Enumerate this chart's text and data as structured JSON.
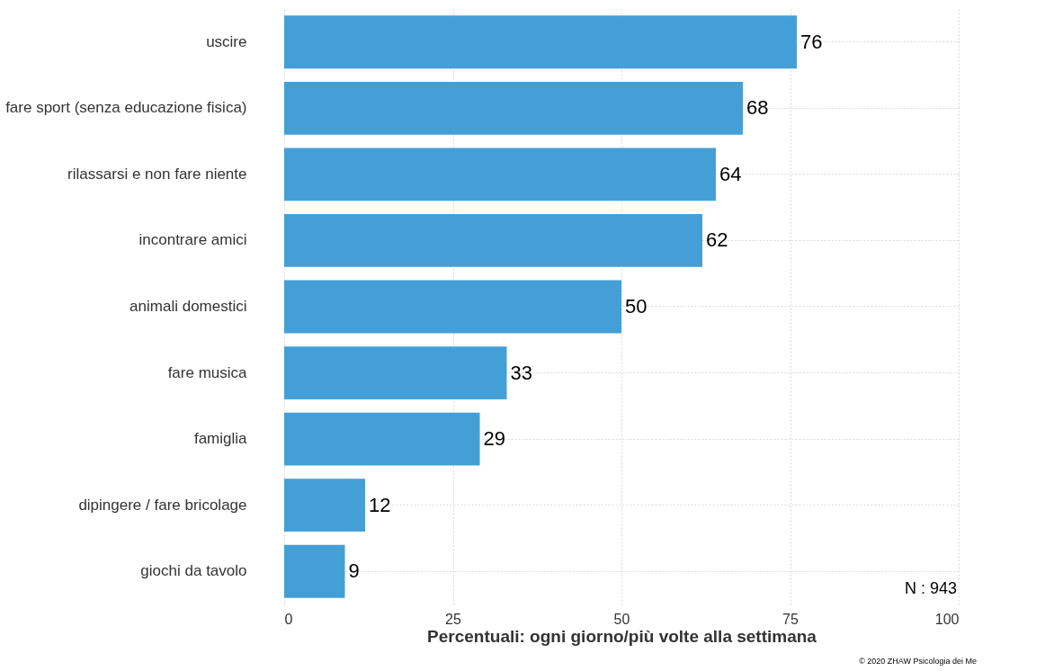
{
  "chart_data": {
    "type": "bar",
    "orientation": "horizontal",
    "categories": [
      "uscire",
      "fare sport (senza educazione fisica)",
      "rilassarsi e non fare niente",
      "incontrare amici",
      "animali domestici",
      "fare musica",
      "famiglia",
      "dipingere / fare bricolage",
      "giochi da tavolo"
    ],
    "values": [
      76,
      68,
      64,
      62,
      50,
      33,
      29,
      12,
      9
    ],
    "color": "#459fd7",
    "xlabel": "Percentuali: ogni giorno/più volte alla settimana",
    "xlim": [
      0,
      100
    ],
    "xticks": [
      0,
      25,
      50,
      75,
      100
    ],
    "grid": true,
    "data_labels": true,
    "annotations": [
      "N : 943",
      "© 2020 ZHAW Psicologia dei Me"
    ]
  }
}
